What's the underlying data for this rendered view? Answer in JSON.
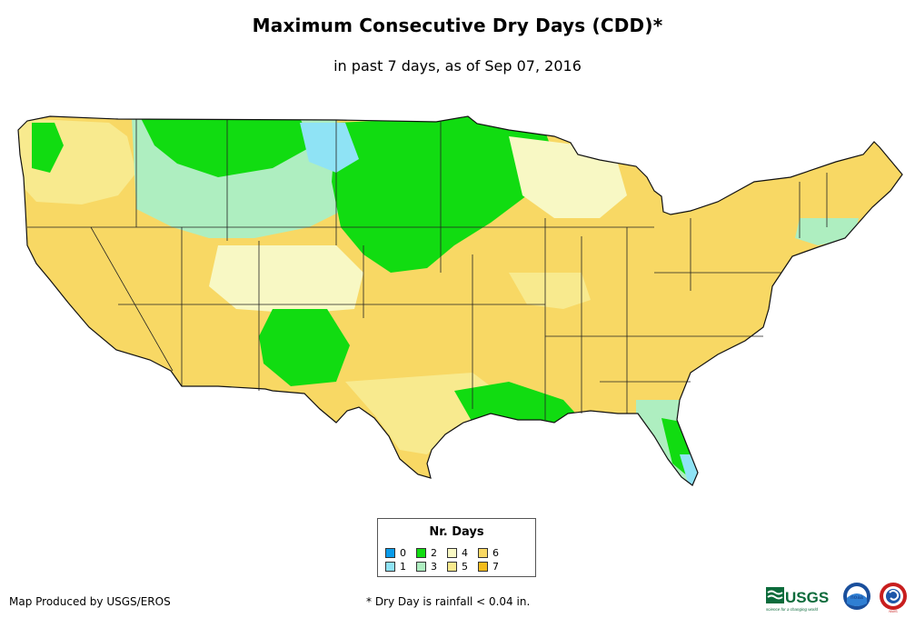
{
  "title": "Maximum Consecutive Dry Days (CDD)*",
  "subtitle": "in past 7 days, as of Sep 07, 2016",
  "legend": {
    "title": "Nr. Days",
    "items": [
      {
        "label": "0",
        "color": "#0a9bea"
      },
      {
        "label": "1",
        "color": "#8fe3f5"
      },
      {
        "label": "2",
        "color": "#11dc11"
      },
      {
        "label": "3",
        "color": "#aeeec0"
      },
      {
        "label": "4",
        "color": "#f8f8c4"
      },
      {
        "label": "5",
        "color": "#f8ea8e"
      },
      {
        "label": "6",
        "color": "#f8d864"
      },
      {
        "label": "7",
        "color": "#f4bc1c"
      }
    ]
  },
  "footer": {
    "credit": "Map Produced by USGS/EROS",
    "note": "* Dry Day is rainfall < 0.04 in."
  },
  "logos": {
    "usgs": "USGS",
    "usgs_tagline": "science for a changing world",
    "noaa": "noaa",
    "nws": "NWS"
  }
}
